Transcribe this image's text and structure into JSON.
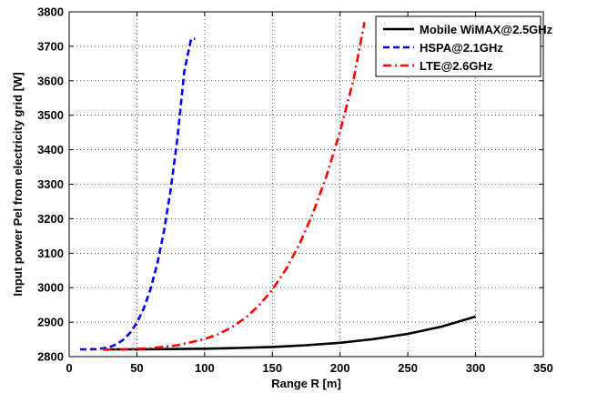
{
  "chart_data": {
    "type": "line",
    "title": "",
    "xlabel": "Range R [m]",
    "ylabel": "Input power Pel from electricity grid [W]",
    "xlim": [
      0,
      350
    ],
    "ylim": [
      2800,
      3800
    ],
    "xticks": [
      0,
      50,
      100,
      150,
      200,
      250,
      300,
      350
    ],
    "yticks": [
      2800,
      2900,
      3000,
      3100,
      3200,
      3300,
      3400,
      3500,
      3600,
      3700,
      3800
    ],
    "grid": true,
    "legend_position": "top-right",
    "series": [
      {
        "name": "Mobile WiMAX@2.5GHz",
        "color": "#000000",
        "dash": "solid",
        "x": [
          30,
          50,
          75,
          100,
          125,
          150,
          175,
          200,
          225,
          250,
          275,
          300
        ],
        "y": [
          2821,
          2821,
          2822,
          2823,
          2825,
          2828,
          2833,
          2840,
          2851,
          2866,
          2887,
          2916
        ]
      },
      {
        "name": "HSPA@2.1GHz",
        "color": "#0000ff",
        "dash": "dashed",
        "x": [
          8,
          15,
          20,
          25,
          30,
          35,
          40,
          45,
          50,
          55,
          60,
          65,
          70,
          75,
          80,
          85,
          90,
          93
        ],
        "y": [
          2821,
          2821,
          2822,
          2824,
          2828,
          2836,
          2849,
          2869,
          2898,
          2939,
          2995,
          3069,
          3164,
          3285,
          3437,
          3627,
          3722,
          3722
        ]
      },
      {
        "name": "LTE@2.6GHz",
        "color": "#ff0000",
        "dash": "dashdot",
        "x": [
          25,
          40,
          60,
          80,
          100,
          110,
          120,
          130,
          140,
          150,
          160,
          170,
          180,
          190,
          200,
          210,
          218
        ],
        "y": [
          2820,
          2821,
          2824,
          2833,
          2851,
          2865,
          2885,
          2912,
          2948,
          2994,
          3053,
          3126,
          3216,
          3324,
          3453,
          3605,
          3770
        ]
      }
    ]
  }
}
